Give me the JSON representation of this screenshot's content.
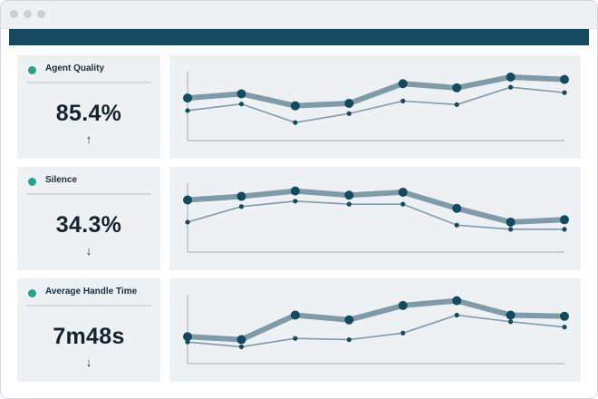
{
  "colors": {
    "accent": "#134a5f",
    "status_dot": "#27a291",
    "series_primary": "#134a5f",
    "series_primary_band": "#7f9ba7",
    "series_secondary": "#7f9ba7"
  },
  "icons": [
    "window-dot-icon",
    "status-dot-icon",
    "arrow-up-icon",
    "arrow-down-icon"
  ],
  "metrics": [
    {
      "label": "Agent Quality",
      "value": "85.4%",
      "trend": "↑",
      "trend_direction": "up"
    },
    {
      "label": "Silence",
      "value": "34.3%",
      "trend": "↓",
      "trend_direction": "down"
    },
    {
      "label": "Average Handle Time",
      "value": "7m48s",
      "trend": "↓",
      "trend_direction": "down"
    }
  ],
  "chart_data": [
    {
      "type": "line",
      "x": [
        1,
        2,
        3,
        4,
        5,
        6,
        7,
        8
      ],
      "series": [
        {
          "values": [
            0.62,
            0.69,
            0.49,
            0.53,
            0.86,
            0.79,
            0.97,
            0.93
          ]
        },
        {
          "values": [
            0.41,
            0.52,
            0.21,
            0.36,
            0.57,
            0.51,
            0.8,
            0.71
          ]
        }
      ]
    },
    {
      "type": "line",
      "x": [
        1,
        2,
        3,
        4,
        5,
        6,
        7,
        8
      ],
      "series": [
        {
          "values": [
            0.78,
            0.84,
            0.93,
            0.86,
            0.91,
            0.64,
            0.41,
            0.45
          ]
        },
        {
          "values": [
            0.41,
            0.67,
            0.76,
            0.71,
            0.71,
            0.36,
            0.29,
            0.29
          ]
        }
      ]
    },
    {
      "type": "line",
      "x": [
        1,
        2,
        3,
        4,
        5,
        6,
        7,
        8
      ],
      "series": [
        {
          "values": [
            0.36,
            0.31,
            0.72,
            0.64,
            0.88,
            0.96,
            0.72,
            0.7
          ]
        },
        {
          "values": [
            0.27,
            0.19,
            0.33,
            0.31,
            0.42,
            0.72,
            0.61,
            0.52
          ]
        }
      ]
    }
  ]
}
